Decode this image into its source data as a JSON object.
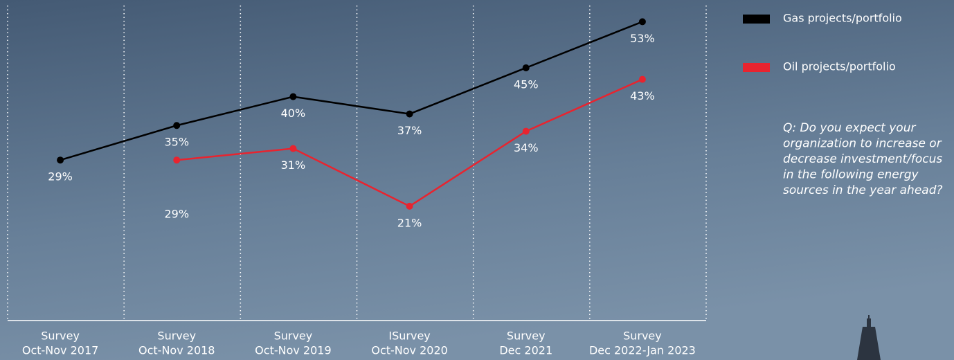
{
  "chart_data": {
    "type": "line",
    "categories": [
      [
        "Survey",
        "Oct-Nov 2017"
      ],
      [
        "Survey",
        "Oct-Nov 2018"
      ],
      [
        "Survey",
        "Oct-Nov 2019"
      ],
      [
        "ISurvey",
        "Oct-Nov 2020"
      ],
      [
        "Survey",
        "Dec 2021"
      ],
      [
        "Survey",
        "Dec 2022-Jan 2023"
      ]
    ],
    "series": [
      {
        "name": "Gas projects/portfolio",
        "color": "#000000",
        "values": [
          29,
          35,
          40,
          37,
          45,
          53
        ],
        "value_labels": [
          "29%",
          "35%",
          "40%",
          "37%",
          "45%",
          "53%"
        ]
      },
      {
        "name": "Oil projects/portfolio",
        "color": "#e8242f",
        "values": [
          null,
          29,
          31,
          21,
          34,
          43
        ],
        "value_labels": [
          null,
          "29%",
          "31%",
          "21%",
          "34%",
          "43%"
        ]
      }
    ],
    "ylim": [
      0,
      55
    ],
    "annotation": [
      "Q: Do you expect your",
      "organization to increase or",
      "decrease investment/focus",
      "in the following energy",
      "sources in the year ahead?"
    ]
  }
}
